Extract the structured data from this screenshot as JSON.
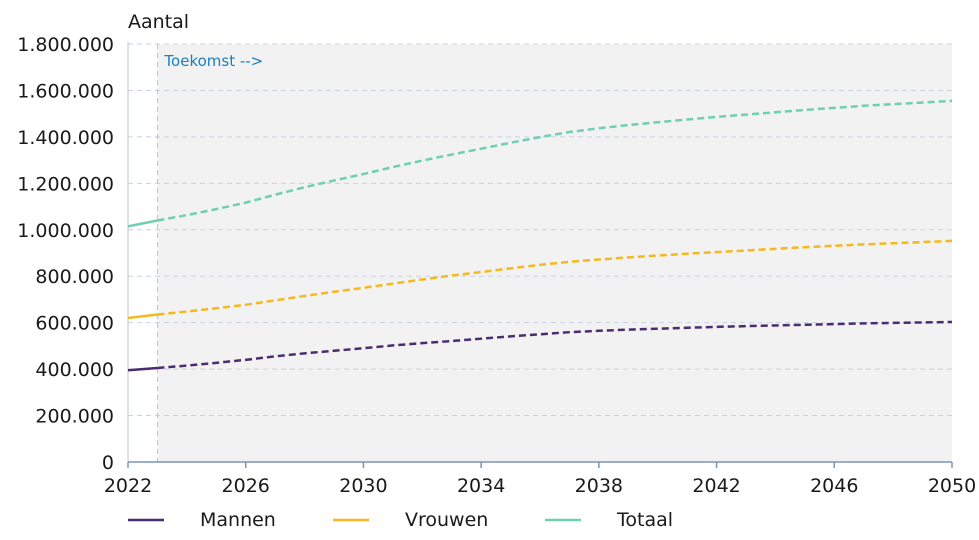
{
  "chart_data": {
    "type": "line",
    "ylabel": "Aantal",
    "ylim": [
      0,
      1800000
    ],
    "yticks": [
      "0",
      "200.000",
      "400.000",
      "600.000",
      "800.000",
      "1.000.000",
      "1.200.000",
      "1.400.000",
      "1.600.000",
      "1.800.000"
    ],
    "xlim": [
      2022,
      2050
    ],
    "xticks": [
      "2022",
      "2026",
      "2030",
      "2034",
      "2038",
      "2042",
      "2046",
      "2050"
    ],
    "x": [
      2022,
      2023,
      2024,
      2025,
      2026,
      2027,
      2028,
      2029,
      2030,
      2031,
      2032,
      2033,
      2034,
      2035,
      2036,
      2037,
      2038,
      2039,
      2040,
      2041,
      2042,
      2043,
      2044,
      2045,
      2046,
      2047,
      2048,
      2049,
      2050
    ],
    "future_start": 2023,
    "future_label": "Toekomst -->",
    "grid": true,
    "legend_position": "bottom",
    "series": [
      {
        "name": "Mannen",
        "color": "#4b2c6e",
        "values": [
          395000,
          405000,
          415000,
          427000,
          440000,
          455000,
          468000,
          479000,
          490000,
          502000,
          512000,
          521000,
          531000,
          541000,
          550000,
          559000,
          565000,
          570000,
          574000,
          578000,
          582000,
          585000,
          588000,
          591000,
          594000,
          597000,
          599000,
          601000,
          603000
        ]
      },
      {
        "name": "Vrouwen",
        "color": "#f5b920",
        "values": [
          620000,
          635000,
          648000,
          662000,
          677000,
          696000,
          715000,
          733000,
          750000,
          768000,
          786000,
          803000,
          818000,
          834000,
          849000,
          862000,
          872000,
          881000,
          889000,
          897000,
          904000,
          911000,
          918000,
          925000,
          931000,
          937000,
          942000,
          947000,
          952000
        ]
      },
      {
        "name": "Totaal",
        "color": "#6fcfb2",
        "values": [
          1015000,
          1040000,
          1063000,
          1089000,
          1117000,
          1151000,
          1183000,
          1212000,
          1240000,
          1270000,
          1298000,
          1324000,
          1349000,
          1375000,
          1399000,
          1421000,
          1437000,
          1451000,
          1463000,
          1475000,
          1486000,
          1496000,
          1506000,
          1516000,
          1525000,
          1534000,
          1541000,
          1548000,
          1555000
        ]
      }
    ]
  }
}
